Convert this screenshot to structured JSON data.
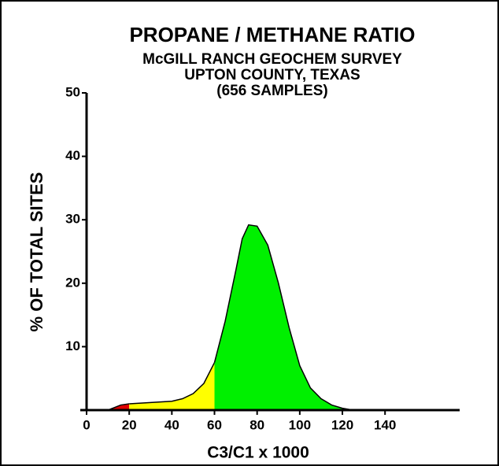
{
  "chart_data": {
    "type": "area",
    "title": "PROPANE / METHANE RATIO",
    "subtitle": [
      "McGILL RANCH GEOCHEM SURVEY",
      "UPTON COUNTY, TEXAS",
      "(656 SAMPLES)"
    ],
    "xlabel": "C3/C1 x 1000",
    "ylabel": "% OF TOTAL SITES",
    "xlim": [
      0,
      175
    ],
    "xticks": [
      0,
      20,
      40,
      60,
      80,
      100,
      120,
      140
    ],
    "ylim": [
      0,
      50
    ],
    "yticks": [
      10,
      20,
      30,
      40,
      50
    ],
    "series": [
      {
        "color": "#e00000",
        "x": [
          10,
          13,
          16,
          20
        ],
        "values": [
          0,
          0.4,
          0.8,
          1.0
        ]
      },
      {
        "color": "#ffff00",
        "x": [
          20,
          30,
          40,
          45,
          50,
          55,
          60
        ],
        "values": [
          1.0,
          1.2,
          1.4,
          1.8,
          2.6,
          4.2,
          7.5
        ]
      },
      {
        "color": "#00f000",
        "x": [
          60,
          65,
          70,
          73,
          76,
          80,
          85,
          90,
          95,
          100,
          105,
          110,
          115,
          120,
          125
        ],
        "values": [
          7.5,
          14,
          22,
          27,
          29.2,
          29,
          26,
          20,
          13,
          7,
          3.5,
          1.8,
          0.8,
          0.3,
          0
        ]
      }
    ]
  }
}
